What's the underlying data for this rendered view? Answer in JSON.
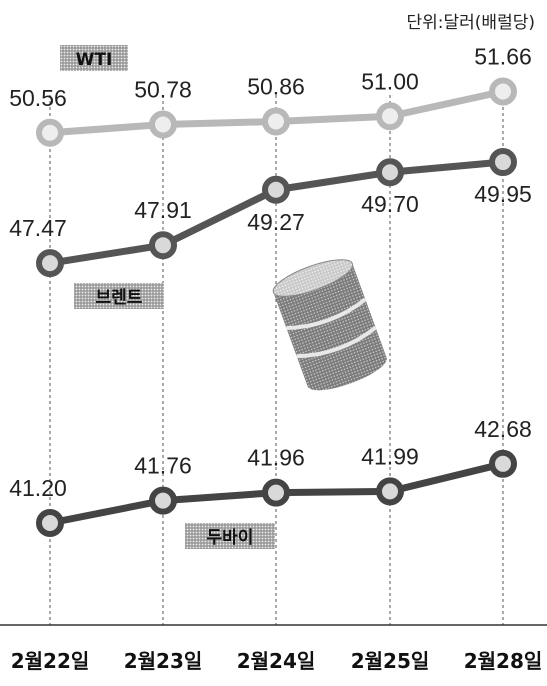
{
  "unit_label": "단위:달러(배럴당)",
  "chart_data": {
    "type": "line",
    "title": "",
    "xlabel": "",
    "ylabel": "",
    "unit": "달러(배럴당)",
    "categories": [
      "2월22일",
      "2월23일",
      "2월24일",
      "2월25일",
      "2월28일"
    ],
    "grid": "vertical dashed lines at each category",
    "legend": "none; series names are tag labels on the lines",
    "series": [
      {
        "name": "WTI",
        "values": [
          50.56,
          50.78,
          50.86,
          51.0,
          51.66
        ],
        "color": "#b8b8b8"
      },
      {
        "name": "브렌트",
        "values": [
          47.47,
          47.91,
          49.27,
          49.7,
          49.95
        ],
        "color": "#555555"
      },
      {
        "name": "두바이",
        "values": [
          41.2,
          41.76,
          41.96,
          41.99,
          42.68
        ],
        "color": "#444444"
      }
    ]
  },
  "decoration": {
    "icon": "oil-barrel-icon"
  }
}
